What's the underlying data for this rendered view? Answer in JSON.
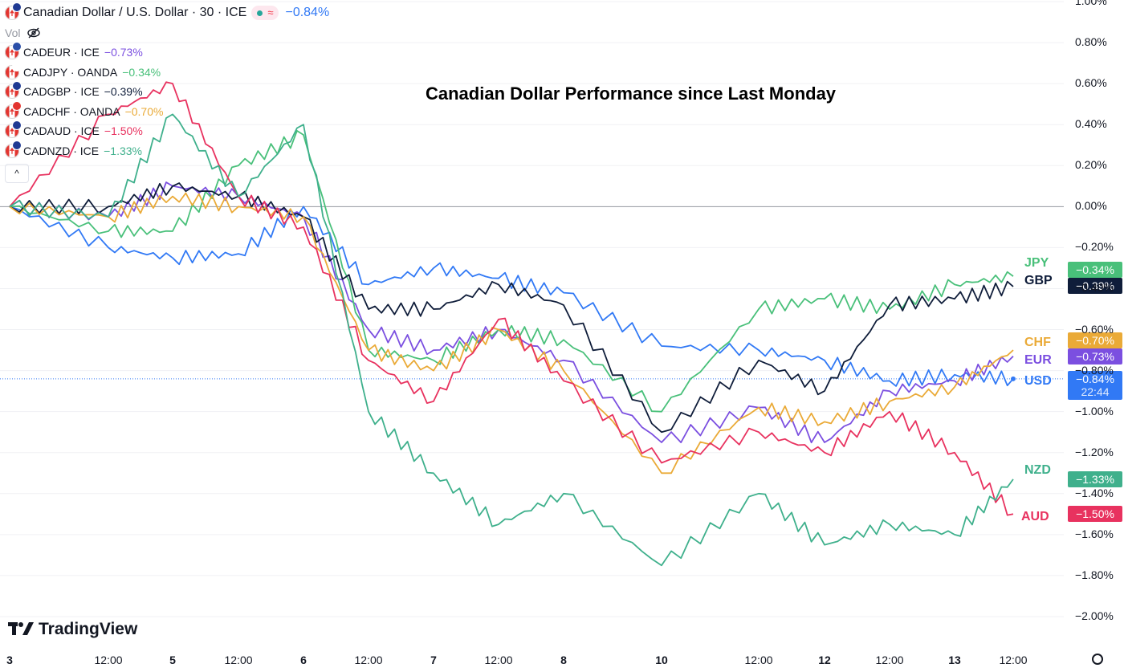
{
  "header": {
    "symbol_title": "Canadian Dollar / U.S. Dollar · 30 · ICE",
    "change": "−0.84%",
    "change_color": "#3179f5",
    "vol_label": "Vol",
    "flag_icon": "canada-usa-flag-icon"
  },
  "legend_items": [
    {
      "symbol": "CADEUR · ICE",
      "change": "−0.73%",
      "color": "#7b4fe0",
      "flag_color": "#2a4ea8"
    },
    {
      "symbol": "CADJPY · OANDA",
      "change": "−0.34%",
      "color": "#49c07a",
      "flag_color": "#ffffff"
    },
    {
      "symbol": "CADGBP · ICE",
      "change": "−0.39%",
      "color": "#0f1d3a",
      "flag_color": "#1f3a93"
    },
    {
      "symbol": "CADCHF · OANDA",
      "change": "−0.70%",
      "color": "#eaaa37",
      "flag_color": "#e3342f"
    },
    {
      "symbol": "CADAUD · ICE",
      "change": "−1.50%",
      "color": "#e8325f",
      "flag_color": "#1f3a93"
    },
    {
      "symbol": "CADNZD · ICE",
      "change": "−1.33%",
      "color": "#3fb08c",
      "flag_color": "#1f3a93"
    }
  ],
  "collapse_icon": "chevron-up-icon",
  "title": "Canadian Dollar Performance since Last Monday",
  "series_labels": [
    {
      "label": "JPY",
      "color": "#49c07a",
      "box": "−0.34%"
    },
    {
      "label": "GBP",
      "color": "#0f1d3a",
      "box": "−0.39%"
    },
    {
      "label": "CHF",
      "color": "#eaaa37",
      "box": "−0.70%"
    },
    {
      "label": "EUR",
      "color": "#7b4fe0",
      "box": "−0.73%"
    },
    {
      "label": "USD",
      "color": "#3179f5",
      "box": "−0.84%",
      "box_sub": "22:44"
    },
    {
      "label": "NZD",
      "color": "#3fb08c",
      "box": "−1.33%"
    },
    {
      "label": "AUD",
      "color": "#e8325f",
      "box": "−1.50%"
    }
  ],
  "y_ticks": [
    "1.00%",
    "0.80%",
    "0.60%",
    "0.40%",
    "0.20%",
    "0.00%",
    "−0.20%",
    "−0.40%",
    "−0.60%",
    "−0.80%",
    "−1.00%",
    "−1.20%",
    "−1.40%",
    "−1.60%",
    "−1.80%",
    "−2.00%"
  ],
  "x_ticks": [
    "3",
    "12:00",
    "5",
    "12:00",
    "6",
    "12:00",
    "7",
    "12:00",
    "8",
    "10",
    "12:00",
    "12",
    "12:00",
    "13",
    "12:00"
  ],
  "brand": "TradingView",
  "settings_icon": "gear-icon",
  "chart_data": {
    "type": "line",
    "title": "Canadian Dollar Performance since Last Monday",
    "ylabel": "",
    "xlabel": "",
    "ylim": [
      -2.0,
      1.0
    ],
    "x": [
      "3",
      "12:00",
      "5",
      "12:00",
      "6",
      "12:00",
      "7",
      "12:00",
      "8",
      "10",
      "12:00",
      "12",
      "12:00",
      "13",
      "12:00"
    ],
    "series": [
      {
        "name": "USD",
        "color": "#3179f5",
        "values": [
          0.0,
          -0.2,
          -0.25,
          -0.23,
          0.0,
          -0.38,
          -0.3,
          -0.35,
          -0.42,
          -0.68,
          -0.7,
          -0.75,
          -0.85,
          -0.82,
          -0.84
        ]
      },
      {
        "name": "EUR",
        "color": "#7b4fe0",
        "values": [
          0.0,
          -0.05,
          0.1,
          0.05,
          -0.05,
          -0.6,
          -0.7,
          -0.6,
          -0.75,
          -1.15,
          -0.98,
          -1.15,
          -0.9,
          -0.85,
          -0.73
        ]
      },
      {
        "name": "JPY",
        "color": "#49c07a",
        "values": [
          0.0,
          -0.12,
          -0.12,
          0.2,
          0.35,
          -0.7,
          -0.75,
          -0.6,
          -0.65,
          -1.0,
          -0.5,
          -0.45,
          -0.5,
          -0.38,
          -0.34
        ]
      },
      {
        "name": "GBP",
        "color": "#0f1d3a",
        "values": [
          0.0,
          0.0,
          0.1,
          0.05,
          -0.05,
          -0.5,
          -0.5,
          -0.38,
          -0.48,
          -1.1,
          -0.75,
          -0.9,
          -0.48,
          -0.45,
          -0.39
        ]
      },
      {
        "name": "CHF",
        "color": "#eaaa37",
        "values": [
          0.0,
          -0.05,
          0.05,
          0.0,
          -0.05,
          -0.7,
          -0.8,
          -0.6,
          -0.8,
          -1.3,
          -0.98,
          -1.05,
          -0.95,
          -0.88,
          -0.7
        ]
      },
      {
        "name": "AUD",
        "color": "#e8325f",
        "values": [
          0.0,
          0.45,
          0.6,
          0.05,
          -0.1,
          -0.75,
          -0.95,
          -0.55,
          -0.85,
          -1.25,
          -1.1,
          -1.2,
          -1.0,
          -1.2,
          -1.5
        ]
      },
      {
        "name": "NZD",
        "color": "#3fb08c",
        "values": [
          0.0,
          -0.05,
          0.45,
          0.05,
          0.4,
          -1.0,
          -1.3,
          -1.55,
          -1.4,
          -1.75,
          -1.4,
          -1.65,
          -1.55,
          -1.6,
          -1.33
        ]
      }
    ]
  }
}
